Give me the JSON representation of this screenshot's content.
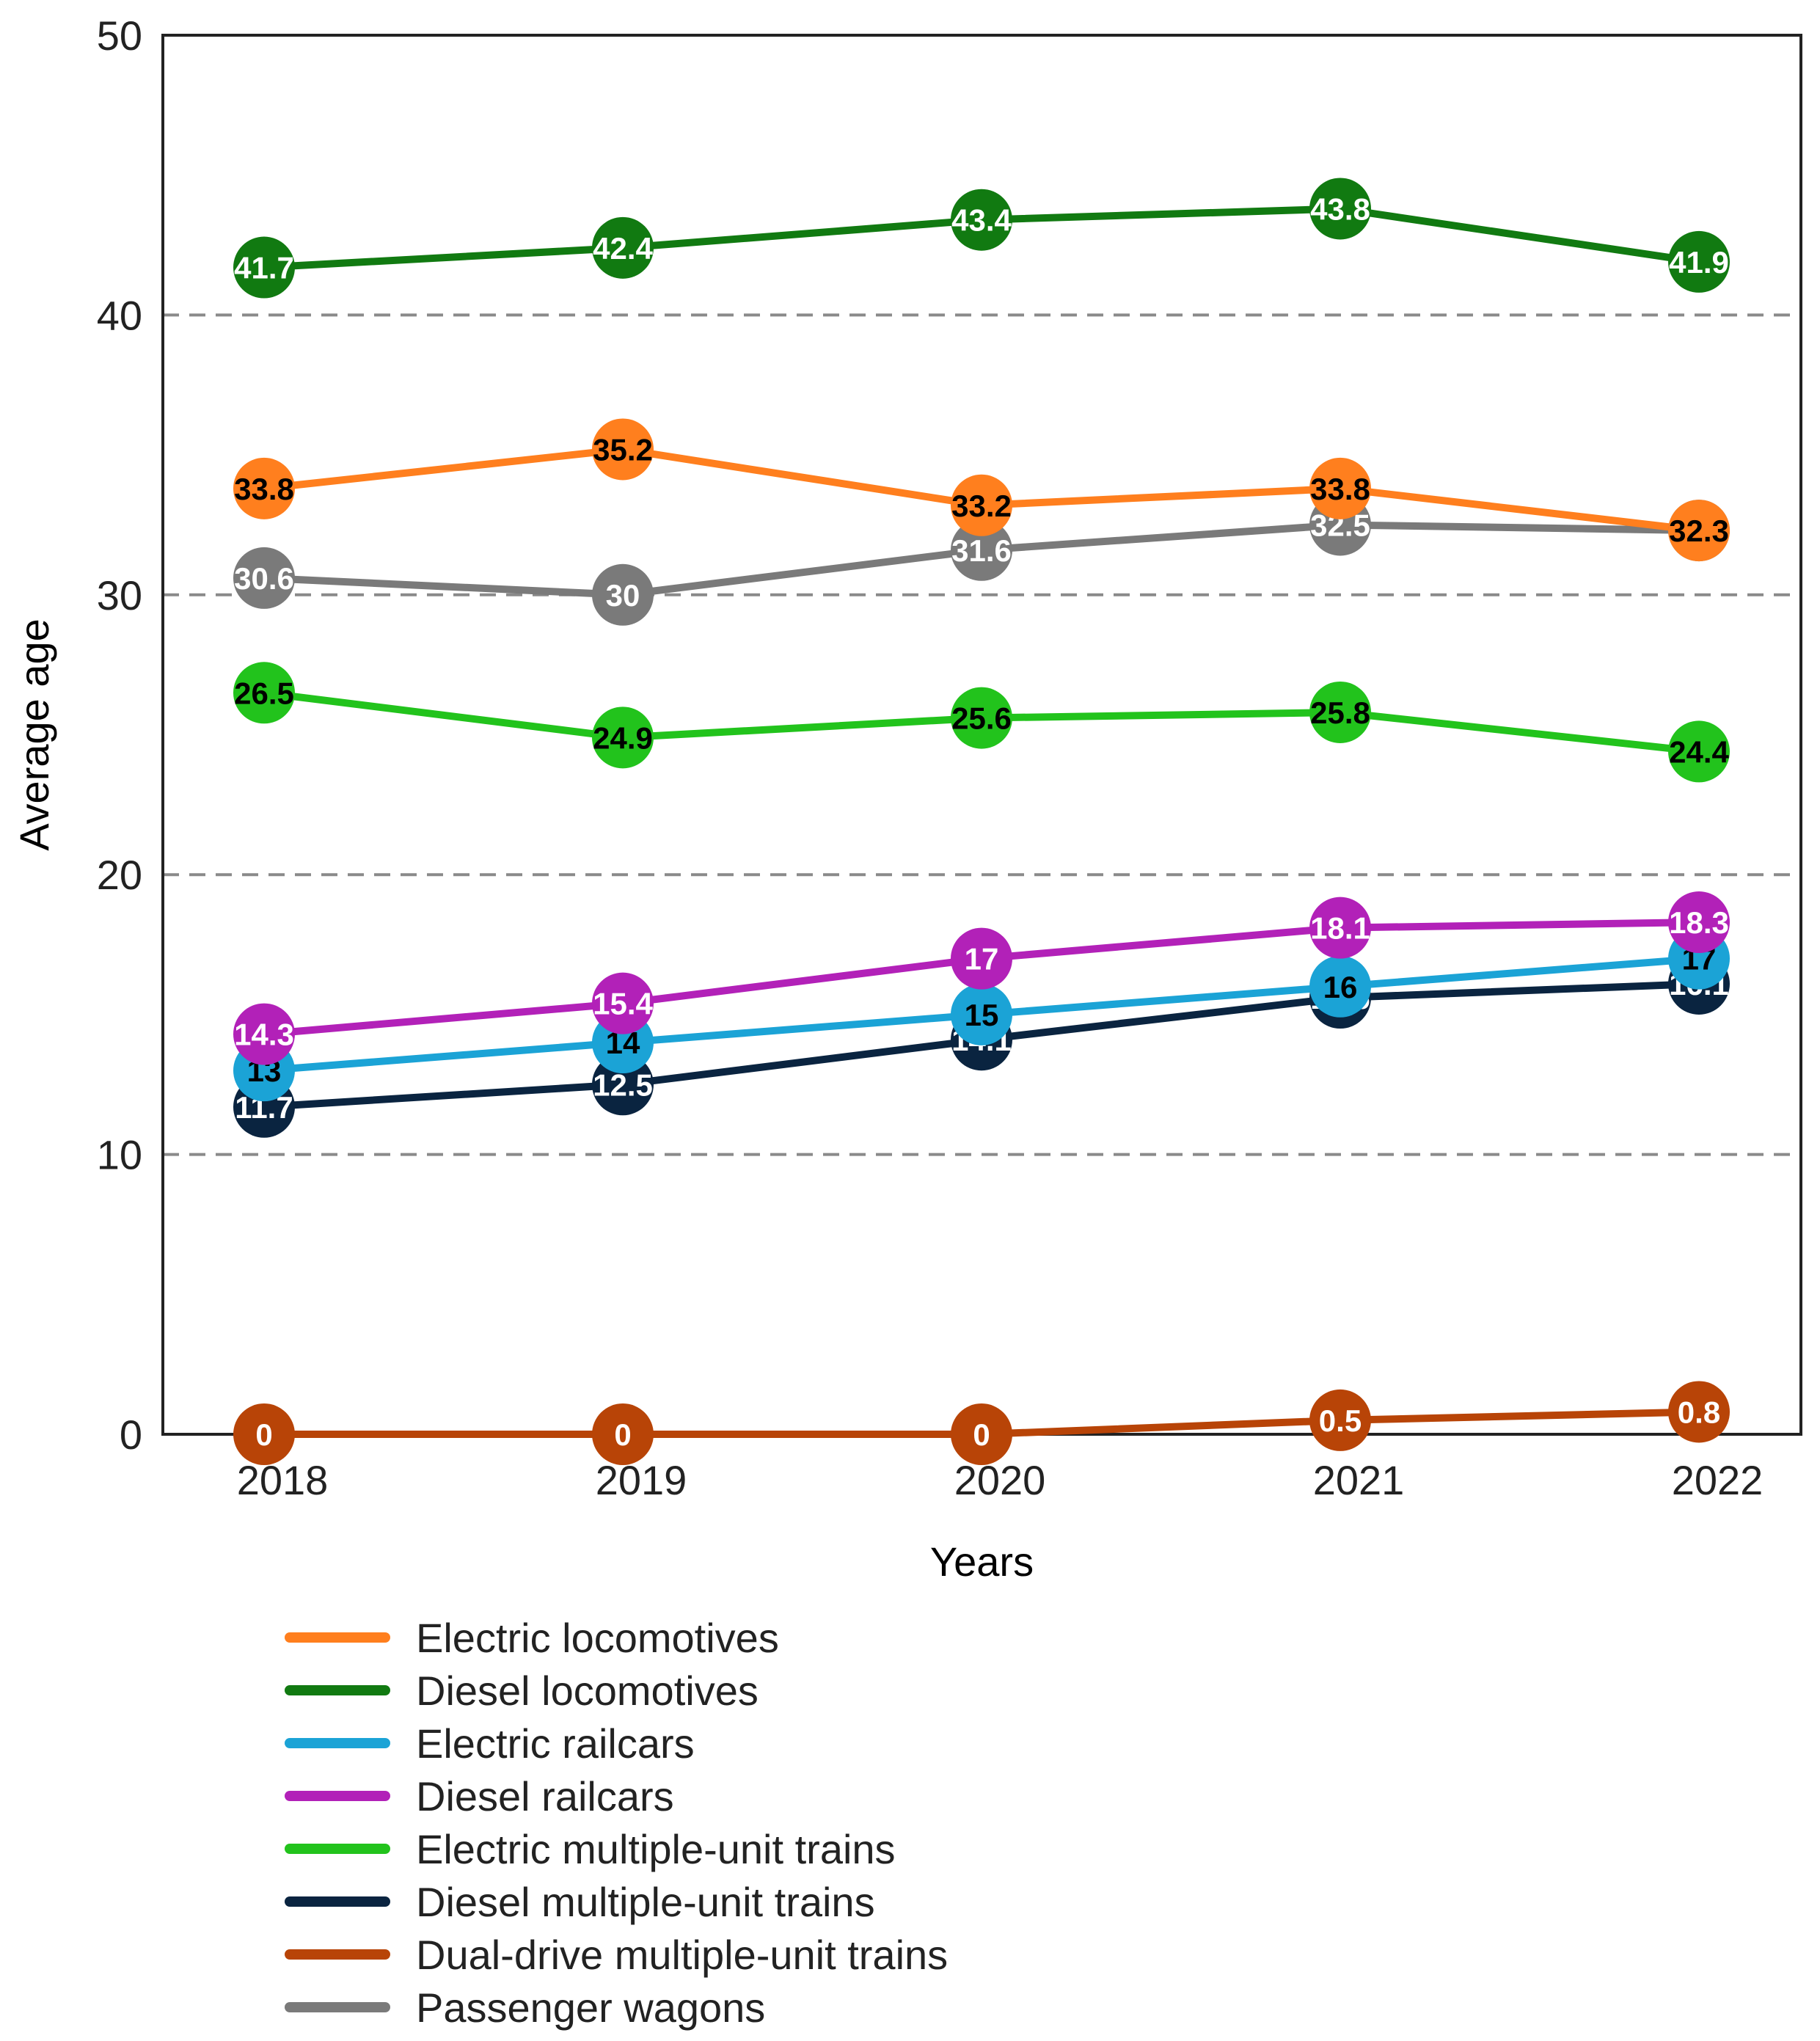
{
  "chart_data": {
    "type": "line",
    "title": "",
    "xlabel": "Years",
    "ylabel": "Average age",
    "ylim": [
      0,
      50
    ],
    "yticks": [
      0,
      10,
      20,
      30,
      40,
      50
    ],
    "categories": [
      "2018",
      "2019",
      "2020",
      "2021",
      "2022"
    ],
    "grid": "dashed horizontal at 10, 20, 30, 40",
    "legend_position": "bottom",
    "series": [
      {
        "name": "Electric locomotives",
        "color": "#FF7F1E",
        "label_color": "#000000",
        "values": [
          33.8,
          35.2,
          33.2,
          33.8,
          32.3
        ],
        "labels": [
          "33.8",
          "35.2",
          "33.2",
          "33.8",
          "32.3"
        ]
      },
      {
        "name": "Diesel locomotives",
        "color": "#117A11",
        "label_color": "#ffffff",
        "values": [
          41.7,
          42.4,
          43.4,
          43.8,
          41.9
        ],
        "labels": [
          "41.7",
          "42.4",
          "43.4",
          "43.8",
          "41.9"
        ]
      },
      {
        "name": "Electric railcars",
        "color": "#1BA3D6",
        "label_color": "#000000",
        "values": [
          13,
          14,
          15,
          16,
          17
        ],
        "labels": [
          "13",
          "14",
          "15",
          "16",
          "17"
        ]
      },
      {
        "name": "Diesel railcars",
        "color": "#B221B8",
        "label_color": "#ffffff",
        "values": [
          14.3,
          15.4,
          17,
          18.1,
          18.3
        ],
        "labels": [
          "14.3",
          "15.4",
          "17",
          "18.1",
          "18.3"
        ]
      },
      {
        "name": "Electric multiple-unit trains",
        "color": "#22C31C",
        "label_color": "#000000",
        "values": [
          26.5,
          24.9,
          25.6,
          25.8,
          24.4
        ],
        "labels": [
          "26.5",
          "24.9",
          "25.6",
          "25.8",
          "24.4"
        ]
      },
      {
        "name": "Diesel multiple-unit trains",
        "color": "#0A2440",
        "label_color": "#ffffff",
        "values": [
          11.7,
          12.5,
          14.1,
          15.6,
          16.1
        ],
        "labels": [
          "11.7",
          "12.5",
          "14.1",
          "15.6",
          "16.1"
        ]
      },
      {
        "name": "Dual-drive multiple-unit trains",
        "color": "#B84407",
        "label_color": "#ffffff",
        "values": [
          0,
          0,
          0,
          0.5,
          0.8
        ],
        "labels": [
          "0",
          "0",
          "0",
          "0.5",
          "0.8"
        ]
      },
      {
        "name": "Passenger wagons",
        "color": "#7A7A7A",
        "label_color": "#ffffff",
        "values": [
          30.6,
          30,
          31.6,
          32.5,
          32.3
        ],
        "labels": [
          "30.6",
          "30",
          "31.6",
          "32.5",
          "32.3"
        ]
      }
    ]
  }
}
